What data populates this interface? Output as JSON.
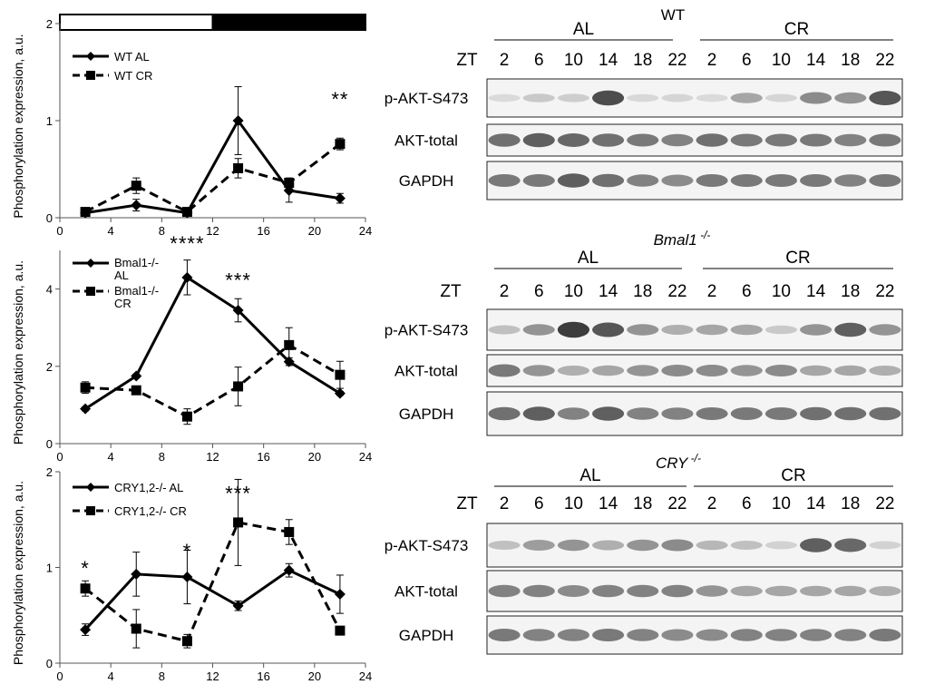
{
  "chart_data": [
    {
      "type": "line",
      "xlim": [
        0,
        24
      ],
      "ylim": [
        0,
        2
      ],
      "xticks": [
        0,
        4,
        8,
        12,
        16,
        20,
        24
      ],
      "yticks": [
        0,
        1,
        2
      ],
      "ylabel": "Phosphorylation expression, a.u.",
      "light_dark_bar": {
        "light": [
          0,
          12
        ],
        "dark": [
          12,
          24
        ]
      },
      "legend_position": "top-left",
      "series": [
        {
          "name": "WT AL",
          "marker": "diamond",
          "dash": "solid",
          "x": [
            2,
            6,
            10,
            14,
            18,
            22
          ],
          "y": [
            0.05,
            0.13,
            0.05,
            1.0,
            0.28,
            0.2
          ],
          "err": [
            0.02,
            0.06,
            0.02,
            0.35,
            0.12,
            0.05
          ]
        },
        {
          "name": "WT CR",
          "marker": "square",
          "dash": "dashed",
          "x": [
            2,
            6,
            10,
            14,
            18,
            22
          ],
          "y": [
            0.06,
            0.33,
            0.06,
            0.51,
            0.36,
            0.76
          ],
          "err": [
            0.02,
            0.08,
            0.02,
            0.1,
            0.05,
            0.06
          ]
        }
      ],
      "annotations": [
        {
          "text": "**",
          "x": 22,
          "y": 1.15
        }
      ]
    },
    {
      "type": "line",
      "xlim": [
        0,
        24
      ],
      "ylim": [
        0,
        5
      ],
      "xticks": [
        0,
        4,
        8,
        12,
        16,
        20,
        24
      ],
      "yticks": [
        0,
        2,
        4
      ],
      "ylabel": "Phosphorylation expression, a.u.",
      "legend_position": "top-left",
      "series": [
        {
          "name": "Bmal1-/- AL",
          "marker": "diamond",
          "dash": "solid",
          "x": [
            2,
            6,
            10,
            14,
            18,
            22
          ],
          "y": [
            0.9,
            1.75,
            4.3,
            3.45,
            2.12,
            1.3
          ],
          "err": [
            0.05,
            0.05,
            0.45,
            0.3,
            0.1,
            0.05
          ]
        },
        {
          "name": "Bmal1-/- CR",
          "marker": "square",
          "dash": "dashed",
          "x": [
            2,
            6,
            10,
            14,
            18,
            22
          ],
          "y": [
            1.45,
            1.38,
            0.7,
            1.48,
            2.55,
            1.78
          ],
          "err": [
            0.15,
            0.05,
            0.2,
            0.5,
            0.45,
            0.35
          ]
        }
      ],
      "annotations": [
        {
          "text": "****",
          "x": 10,
          "y": 5.0
        },
        {
          "text": "***",
          "x": 14,
          "y": 4.05
        }
      ]
    },
    {
      "type": "line",
      "xlim": [
        0,
        24
      ],
      "ylim": [
        0,
        2
      ],
      "xticks": [
        0,
        4,
        8,
        12,
        16,
        20,
        24
      ],
      "yticks": [
        0,
        1,
        2
      ],
      "ylabel": "Phosphorylation expression, a.u.",
      "legend_position": "top-left",
      "series": [
        {
          "name": "CRY1,2-/- AL",
          "marker": "diamond",
          "dash": "solid",
          "x": [
            2,
            6,
            10,
            14,
            18,
            22
          ],
          "y": [
            0.35,
            0.93,
            0.9,
            0.6,
            0.97,
            0.72
          ],
          "err": [
            0.06,
            0.23,
            0.28,
            0.05,
            0.07,
            0.2
          ]
        },
        {
          "name": "CRY1,2-/- CR",
          "marker": "square",
          "dash": "dashed",
          "x": [
            2,
            6,
            10,
            14,
            18,
            22
          ],
          "y": [
            0.78,
            0.36,
            0.23,
            1.47,
            1.37,
            0.34
          ],
          "err": [
            0.08,
            0.2,
            0.07,
            0.45,
            0.13,
            0.04
          ]
        }
      ],
      "annotations": [
        {
          "text": "*",
          "x": 2,
          "y": 0.92
        },
        {
          "text": "*",
          "x": 10,
          "y": 1.1
        },
        {
          "text": "***",
          "x": 14,
          "y": 1.7
        }
      ]
    }
  ],
  "blots": [
    {
      "genotype": "WT",
      "italic": false,
      "group_labels": [
        "AL",
        "CR"
      ],
      "zt_label": "ZT",
      "zt_values": [
        "2",
        "6",
        "10",
        "14",
        "18",
        "22",
        "2",
        "6",
        "10",
        "14",
        "18",
        "22"
      ],
      "rows": [
        {
          "label": "p-AKT-S473",
          "intensity": [
            0.05,
            0.15,
            0.12,
            0.85,
            0.06,
            0.08,
            0.05,
            0.35,
            0.08,
            0.5,
            0.45,
            0.8
          ]
        },
        {
          "label": "AKT-total",
          "intensity": [
            0.65,
            0.75,
            0.7,
            0.65,
            0.6,
            0.55,
            0.65,
            0.6,
            0.6,
            0.6,
            0.55,
            0.6
          ]
        },
        {
          "label": "GAPDH",
          "intensity": [
            0.6,
            0.6,
            0.75,
            0.65,
            0.55,
            0.5,
            0.6,
            0.6,
            0.6,
            0.6,
            0.55,
            0.6
          ]
        }
      ]
    },
    {
      "genotype": "Bmal1 -/-",
      "italic": true,
      "group_labels": [
        "AL",
        "CR"
      ],
      "zt_label": "ZT",
      "zt_values": [
        "2",
        "6",
        "10",
        "14",
        "18",
        "22",
        "2",
        "6",
        "10",
        "14",
        "18",
        "22"
      ],
      "rows": [
        {
          "label": "p-AKT-S473",
          "intensity": [
            0.2,
            0.45,
            0.95,
            0.8,
            0.45,
            0.3,
            0.35,
            0.35,
            0.15,
            0.45,
            0.75,
            0.45
          ]
        },
        {
          "label": "AKT-total",
          "intensity": [
            0.6,
            0.45,
            0.3,
            0.35,
            0.45,
            0.5,
            0.5,
            0.45,
            0.5,
            0.35,
            0.35,
            0.3
          ]
        },
        {
          "label": "GAPDH",
          "intensity": [
            0.65,
            0.75,
            0.55,
            0.75,
            0.55,
            0.55,
            0.6,
            0.6,
            0.6,
            0.65,
            0.65,
            0.65
          ]
        }
      ]
    },
    {
      "genotype": "CRY -/-",
      "italic": true,
      "group_labels": [
        "AL",
        "CR"
      ],
      "zt_label": "ZT",
      "zt_values": [
        "2",
        "6",
        "10",
        "14",
        "18",
        "22",
        "2",
        "6",
        "10",
        "14",
        "18",
        "22"
      ],
      "rows": [
        {
          "label": "p-AKT-S473",
          "intensity": [
            0.2,
            0.4,
            0.45,
            0.3,
            0.45,
            0.5,
            0.25,
            0.2,
            0.1,
            0.75,
            0.7,
            0.1
          ]
        },
        {
          "label": "AKT-total",
          "intensity": [
            0.55,
            0.55,
            0.5,
            0.55,
            0.55,
            0.55,
            0.45,
            0.35,
            0.35,
            0.35,
            0.35,
            0.3
          ]
        },
        {
          "label": "GAPDH",
          "intensity": [
            0.6,
            0.55,
            0.55,
            0.6,
            0.55,
            0.5,
            0.5,
            0.55,
            0.55,
            0.55,
            0.55,
            0.6
          ]
        }
      ]
    }
  ]
}
